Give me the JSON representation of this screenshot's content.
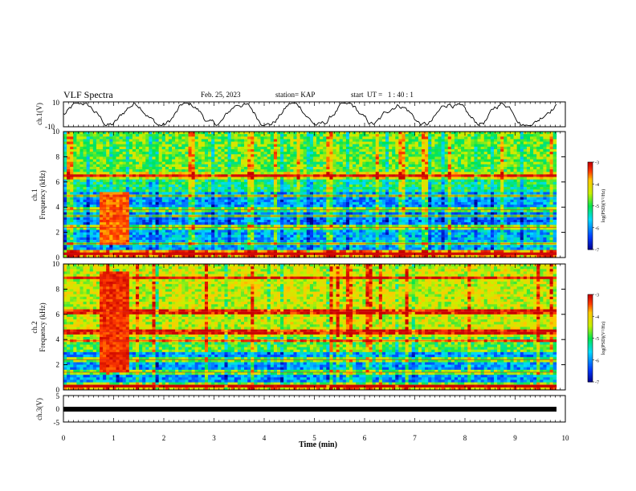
{
  "header": {
    "title": "VLF Spectra",
    "date": "Feb. 25, 2023",
    "station": "station= KAP",
    "start": "start  UT =   1 : 40 : 1"
  },
  "chart_data": [
    {
      "type": "line",
      "panel": "ch1-waveform",
      "ylabel": "ch.1(V)",
      "ylim": [
        -10,
        10
      ],
      "yticks": [
        "10",
        "-10"
      ],
      "xlim": [
        0,
        10
      ],
      "x_end": 9.82,
      "description_values": "continuous waveform, amplitude mostly between -6 and 8 V"
    },
    {
      "type": "heatmap",
      "panel": "ch1-spectrogram",
      "ylabel": "ch.1",
      "ylabel2": "Frequency (kHz)",
      "ylim": [
        0,
        10
      ],
      "yticks": [
        "0",
        "2",
        "4",
        "6",
        "8",
        "10"
      ],
      "xlim": [
        0,
        10
      ],
      "x_end": 9.82,
      "colorbar": {
        "label": "log(PSD)(V²/Hz)",
        "range": [
          -7,
          -3
        ],
        "ticks": [
          "-3",
          "-4",
          "-5",
          "-6",
          "-7"
        ]
      },
      "bands": [
        {
          "f": [
            0,
            0.6
          ],
          "level": -3.6
        },
        {
          "f": [
            0.6,
            2.6
          ],
          "level": -5.8
        },
        {
          "f": [
            2.6,
            3.9
          ],
          "level": -6.1
        },
        {
          "f": [
            3.9,
            5.2
          ],
          "level": -5.9
        },
        {
          "f": [
            5.2,
            6.2
          ],
          "level": -5.1
        },
        {
          "f": [
            6.2,
            6.9
          ],
          "level": -4.2
        },
        {
          "f": [
            6.9,
            10
          ],
          "level": -4.7
        }
      ],
      "lines_khz": [
        6.5,
        4.9,
        3.8,
        3.3,
        2.4,
        1.1,
        0.3
      ],
      "burst": {
        "t": [
          0.68,
          1.27
        ],
        "f": [
          1,
          5.2
        ],
        "level": -3.5
      }
    },
    {
      "type": "heatmap",
      "panel": "ch2-spectrogram",
      "ylabel": "ch.2",
      "ylabel2": "Frequency (kHz)",
      "ylim": [
        0,
        10
      ],
      "yticks": [
        "0",
        "2",
        "4",
        "6",
        "8",
        "10"
      ],
      "xlim": [
        0,
        10
      ],
      "x_end": 9.82,
      "colorbar": {
        "label": "log(PSD)(V²/Hz)",
        "range": [
          -7,
          -3
        ],
        "ticks": [
          "-3",
          "-4",
          "-5",
          "-6",
          "-7"
        ]
      },
      "bands": [
        {
          "f": [
            0,
            0.5
          ],
          "level": -3.8
        },
        {
          "f": [
            0.5,
            3.1
          ],
          "level": -5.9
        },
        {
          "f": [
            3.1,
            4.3
          ],
          "level": -4.8
        },
        {
          "f": [
            4.3,
            10
          ],
          "level": -4.3
        }
      ],
      "lines_khz": [
        8.9,
        6.2,
        4.6,
        3.9,
        2.4,
        1.4,
        0.4
      ],
      "burst": {
        "t": [
          0.68,
          1.27
        ],
        "f": [
          1.5,
          9.3
        ],
        "level": -3.3
      }
    },
    {
      "type": "line",
      "panel": "ch3-waveform",
      "ylabel": "ch.3(V)",
      "ylim": [
        -5,
        5
      ],
      "yticks": [
        "5",
        "0",
        "-5"
      ],
      "xlim": [
        0,
        10
      ],
      "x_end": 9.82,
      "constant_value": 0,
      "xlabel": "Time  (min)",
      "xticks": [
        "0",
        "1",
        "2",
        "3",
        "4",
        "5",
        "6",
        "7",
        "8",
        "9",
        "10"
      ]
    }
  ]
}
